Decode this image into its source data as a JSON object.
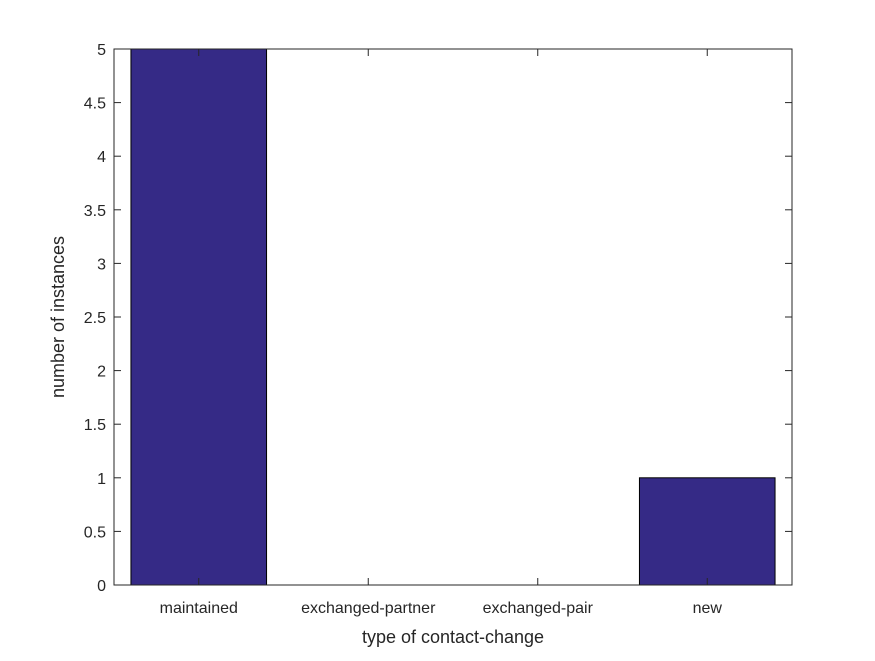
{
  "chart_data": {
    "type": "bar",
    "categories": [
      "maintained",
      "exchanged-partner",
      "exchanged-pair",
      "new"
    ],
    "values": [
      5,
      0,
      0,
      1
    ],
    "title": "",
    "xlabel": "type of contact-change",
    "ylabel": "number of instances",
    "ylim": [
      0,
      5
    ],
    "yticks": [
      0,
      0.5,
      1,
      1.5,
      2,
      2.5,
      3,
      3.5,
      4,
      4.5,
      5
    ],
    "ytick_labels": [
      "0",
      "0.5",
      "1",
      "1.5",
      "2",
      "2.5",
      "3",
      "3.5",
      "4",
      "4.5",
      "5"
    ],
    "grid": false,
    "bar_color": "#352a86",
    "bar_edge_color": "#000000"
  }
}
